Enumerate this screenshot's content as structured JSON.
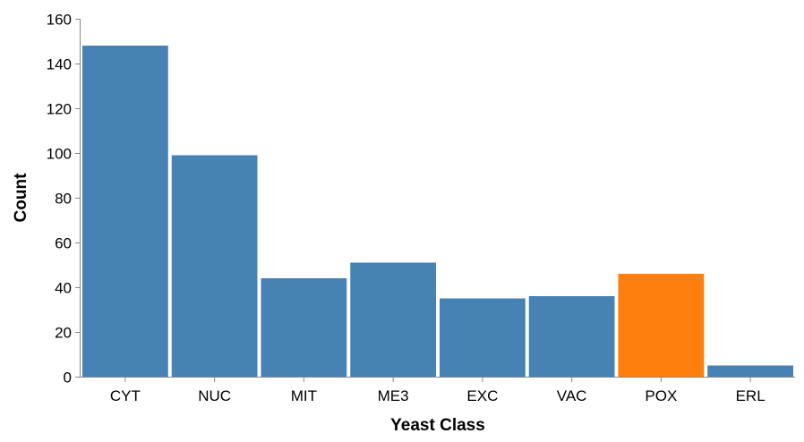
{
  "chart_data": {
    "type": "bar",
    "categories": [
      "CYT",
      "NUC",
      "MIT",
      "ME3",
      "EXC",
      "VAC",
      "POX",
      "ERL"
    ],
    "values": [
      148,
      99,
      44,
      51,
      35,
      36,
      46,
      5
    ],
    "highlight": [
      "POX"
    ],
    "xlabel": "Yeast Class",
    "ylabel": "Count",
    "ylim": [
      0,
      160
    ],
    "yticks": [
      0,
      20,
      40,
      60,
      80,
      100,
      120,
      140,
      160
    ],
    "grid": false,
    "legend": "none",
    "colors": {
      "bar": "#4682b4",
      "highlight": "#ff7f0e",
      "axis": "#888888"
    }
  }
}
